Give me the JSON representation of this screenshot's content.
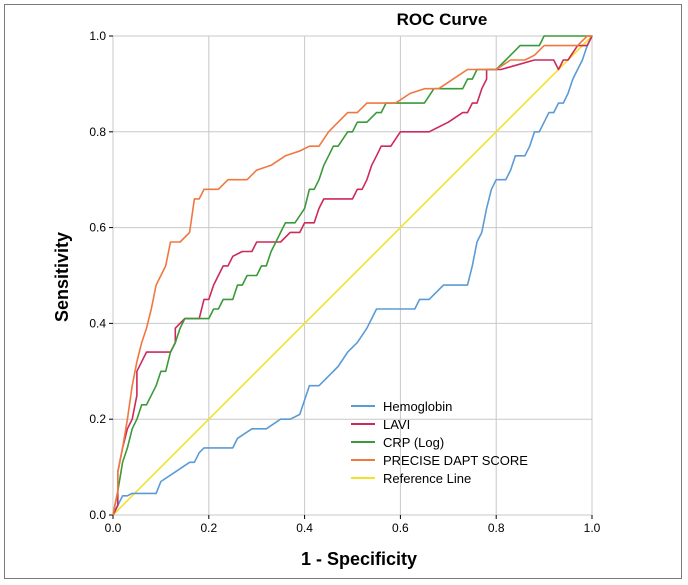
{
  "chart_data": {
    "type": "line",
    "title": "ROC Curve",
    "xlabel": "1 - Specificity",
    "ylabel": "Sensitivity",
    "xlim": [
      0,
      1
    ],
    "ylim": [
      0,
      1
    ],
    "x_ticks": [
      "0.0",
      "0.2",
      "0.4",
      "0.6",
      "0.8",
      "1.0"
    ],
    "y_ticks": [
      "0.0",
      "0.2",
      "0.4",
      "0.6",
      "0.8",
      "1.0"
    ],
    "grid": true,
    "legend_position": "bottom-right",
    "series": [
      {
        "name": "Hemoglobin",
        "color": "#5b9bd5",
        "x": [
          0.0,
          0.01,
          0.02,
          0.03,
          0.04,
          0.09,
          0.1,
          0.13,
          0.16,
          0.17,
          0.18,
          0.19,
          0.2,
          0.25,
          0.26,
          0.29,
          0.3,
          0.32,
          0.35,
          0.37,
          0.39,
          0.4,
          0.41,
          0.43,
          0.45,
          0.47,
          0.49,
          0.51,
          0.53,
          0.54,
          0.55,
          0.57,
          0.58,
          0.59,
          0.61,
          0.63,
          0.64,
          0.66,
          0.69,
          0.71,
          0.73,
          0.74,
          0.75,
          0.76,
          0.77,
          0.78,
          0.79,
          0.8,
          0.81,
          0.82,
          0.83,
          0.84,
          0.85,
          0.86,
          0.87,
          0.88,
          0.89,
          0.9,
          0.91,
          0.92,
          0.93,
          0.94,
          0.95,
          0.96,
          0.97,
          0.98,
          0.99,
          1.0
        ],
        "y": [
          0.0,
          0.02,
          0.04,
          0.04,
          0.045,
          0.045,
          0.07,
          0.09,
          0.11,
          0.11,
          0.13,
          0.14,
          0.14,
          0.14,
          0.16,
          0.18,
          0.18,
          0.18,
          0.2,
          0.2,
          0.21,
          0.24,
          0.27,
          0.27,
          0.29,
          0.31,
          0.34,
          0.36,
          0.39,
          0.41,
          0.43,
          0.43,
          0.43,
          0.43,
          0.43,
          0.43,
          0.45,
          0.45,
          0.48,
          0.48,
          0.48,
          0.48,
          0.52,
          0.57,
          0.59,
          0.64,
          0.68,
          0.7,
          0.7,
          0.7,
          0.72,
          0.75,
          0.75,
          0.75,
          0.77,
          0.8,
          0.8,
          0.82,
          0.84,
          0.84,
          0.86,
          0.86,
          0.88,
          0.91,
          0.93,
          0.95,
          0.98,
          1.0
        ]
      },
      {
        "name": "LAVI",
        "color": "#cc2a5a",
        "x": [
          0.0,
          0.01,
          0.01,
          0.02,
          0.03,
          0.04,
          0.05,
          0.05,
          0.06,
          0.07,
          0.12,
          0.13,
          0.13,
          0.15,
          0.18,
          0.19,
          0.2,
          0.21,
          0.22,
          0.23,
          0.24,
          0.25,
          0.27,
          0.29,
          0.3,
          0.32,
          0.33,
          0.35,
          0.37,
          0.39,
          0.4,
          0.41,
          0.42,
          0.43,
          0.44,
          0.45,
          0.46,
          0.47,
          0.49,
          0.5,
          0.51,
          0.52,
          0.53,
          0.54,
          0.55,
          0.56,
          0.58,
          0.6,
          0.62,
          0.64,
          0.65,
          0.66,
          0.7,
          0.73,
          0.74,
          0.75,
          0.76,
          0.77,
          0.78,
          0.78,
          0.8,
          0.81,
          0.88,
          0.89,
          0.9,
          0.91,
          0.92,
          0.93,
          0.94,
          0.95,
          0.97,
          0.98,
          0.99,
          1.0
        ],
        "y": [
          0.0,
          0.02,
          0.09,
          0.14,
          0.18,
          0.2,
          0.25,
          0.3,
          0.32,
          0.34,
          0.34,
          0.36,
          0.39,
          0.41,
          0.41,
          0.45,
          0.45,
          0.48,
          0.5,
          0.52,
          0.52,
          0.54,
          0.55,
          0.55,
          0.57,
          0.57,
          0.57,
          0.57,
          0.59,
          0.59,
          0.61,
          0.61,
          0.61,
          0.64,
          0.66,
          0.66,
          0.66,
          0.66,
          0.66,
          0.66,
          0.68,
          0.68,
          0.7,
          0.73,
          0.75,
          0.77,
          0.77,
          0.8,
          0.8,
          0.8,
          0.8,
          0.8,
          0.82,
          0.84,
          0.84,
          0.86,
          0.86,
          0.89,
          0.91,
          0.93,
          0.93,
          0.93,
          0.95,
          0.95,
          0.95,
          0.95,
          0.95,
          0.93,
          0.95,
          0.95,
          0.98,
          0.98,
          0.98,
          1.0
        ]
      },
      {
        "name": "CRP (Log)",
        "color": "#3a9a3a",
        "x": [
          0.0,
          0.01,
          0.02,
          0.03,
          0.04,
          0.05,
          0.06,
          0.07,
          0.08,
          0.09,
          0.1,
          0.11,
          0.12,
          0.13,
          0.14,
          0.15,
          0.16,
          0.18,
          0.2,
          0.21,
          0.22,
          0.23,
          0.24,
          0.25,
          0.26,
          0.27,
          0.28,
          0.3,
          0.31,
          0.32,
          0.33,
          0.34,
          0.35,
          0.36,
          0.37,
          0.38,
          0.4,
          0.41,
          0.42,
          0.43,
          0.44,
          0.45,
          0.46,
          0.47,
          0.49,
          0.5,
          0.51,
          0.52,
          0.53,
          0.55,
          0.56,
          0.57,
          0.6,
          0.62,
          0.65,
          0.67,
          0.68,
          0.7,
          0.71,
          0.73,
          0.74,
          0.75,
          0.76,
          0.77,
          0.8,
          0.82,
          0.85,
          0.86,
          0.89,
          0.9,
          0.92,
          0.95,
          0.97,
          1.0
        ],
        "y": [
          0.0,
          0.05,
          0.11,
          0.14,
          0.18,
          0.2,
          0.23,
          0.23,
          0.25,
          0.27,
          0.3,
          0.3,
          0.34,
          0.36,
          0.39,
          0.41,
          0.41,
          0.41,
          0.41,
          0.43,
          0.43,
          0.45,
          0.45,
          0.45,
          0.48,
          0.48,
          0.5,
          0.5,
          0.52,
          0.52,
          0.55,
          0.57,
          0.59,
          0.61,
          0.61,
          0.61,
          0.64,
          0.68,
          0.68,
          0.7,
          0.73,
          0.75,
          0.77,
          0.77,
          0.8,
          0.8,
          0.82,
          0.82,
          0.82,
          0.84,
          0.84,
          0.86,
          0.86,
          0.86,
          0.86,
          0.89,
          0.89,
          0.89,
          0.89,
          0.89,
          0.91,
          0.91,
          0.93,
          0.93,
          0.93,
          0.95,
          0.98,
          0.98,
          0.98,
          1.0,
          1.0,
          1.0,
          1.0,
          1.0
        ]
      },
      {
        "name": "PRECISE DAPT SCORE",
        "color": "#f07840",
        "x": [
          0.0,
          0.01,
          0.01,
          0.02,
          0.03,
          0.04,
          0.05,
          0.06,
          0.07,
          0.08,
          0.09,
          0.1,
          0.11,
          0.12,
          0.14,
          0.16,
          0.17,
          0.18,
          0.19,
          0.2,
          0.22,
          0.24,
          0.26,
          0.28,
          0.3,
          0.33,
          0.36,
          0.39,
          0.41,
          0.43,
          0.45,
          0.47,
          0.49,
          0.51,
          0.53,
          0.55,
          0.57,
          0.59,
          0.62,
          0.65,
          0.68,
          0.71,
          0.74,
          0.77,
          0.8,
          0.83,
          0.86,
          0.88,
          0.9,
          0.92,
          0.95,
          0.97,
          0.99,
          1.0
        ],
        "y": [
          0.0,
          0.05,
          0.09,
          0.14,
          0.2,
          0.27,
          0.32,
          0.36,
          0.39,
          0.43,
          0.48,
          0.5,
          0.52,
          0.57,
          0.57,
          0.59,
          0.66,
          0.66,
          0.68,
          0.68,
          0.68,
          0.7,
          0.7,
          0.7,
          0.72,
          0.73,
          0.75,
          0.76,
          0.77,
          0.77,
          0.8,
          0.82,
          0.84,
          0.84,
          0.86,
          0.86,
          0.86,
          0.86,
          0.88,
          0.89,
          0.89,
          0.91,
          0.93,
          0.93,
          0.93,
          0.95,
          0.95,
          0.96,
          0.98,
          0.98,
          0.98,
          0.98,
          1.0,
          1.0
        ]
      },
      {
        "name": "Reference Line",
        "color": "#f2e22b",
        "x": [
          0.0,
          1.0
        ],
        "y": [
          0.0,
          1.0
        ]
      }
    ]
  }
}
